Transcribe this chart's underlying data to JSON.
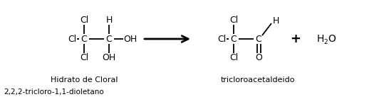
{
  "bg_color": "#ffffff",
  "line_color": "#000000",
  "text_color": "#000000",
  "fig_width": 5.25,
  "fig_height": 1.54,
  "dpi": 100,
  "reactant_label": "Hidrato de Cloral",
  "reactant_sublabel": "2,2,2-tricloro-1,1-dioletano",
  "product_label": "tricloroacetaldeido"
}
